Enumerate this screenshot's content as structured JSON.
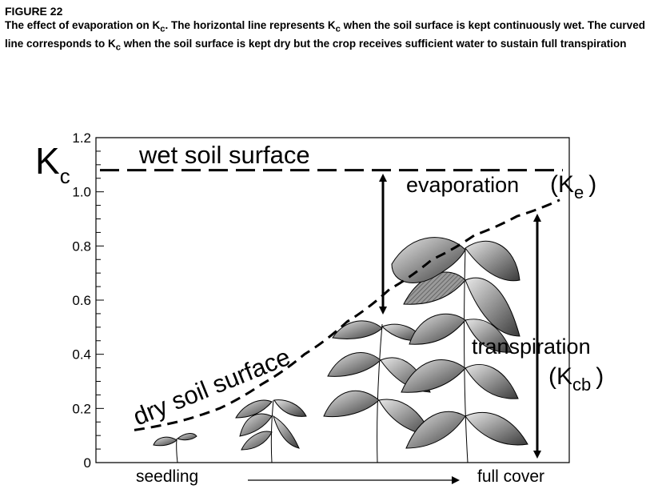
{
  "caption": {
    "figure_label": "FIGURE 22",
    "text_before_sub_1": "The effect of evaporation on K",
    "sub_1": "c",
    "text_between": ". The horizontal line represents K",
    "sub_2": "c",
    "text_mid": " when the soil surface is kept continuously wet. The curved line corresponds to K",
    "sub_3": "c",
    "text_after": " when the soil surface is kept dry but the crop receives sufficient water to sustain full transpiration"
  },
  "colors": {
    "line": "#000000",
    "leaf_dark": "#3a3a3a",
    "leaf_light": "#e8e8e8"
  },
  "chart_data": {
    "type": "line",
    "ylabel_main": "K",
    "ylabel_sub": "c",
    "ylim": [
      0,
      1.2
    ],
    "yticks": [
      0,
      0.2,
      0.4,
      0.6,
      0.8,
      1.0,
      1.2
    ],
    "ytick_labels": [
      "0",
      "0.2",
      "0.4",
      "0.6",
      "0.8",
      "1.0",
      "1.2"
    ],
    "x_start_label": "seedling",
    "x_end_label": "full cover",
    "grid": false,
    "series": [
      {
        "name": "wet soil surface",
        "style": "dashed",
        "x": [
          0,
          1
        ],
        "y": [
          1.08,
          1.08
        ]
      },
      {
        "name": "dry soil surface",
        "style": "dashed",
        "x": [
          0,
          0.1,
          0.2,
          0.3,
          0.4,
          0.5,
          0.6,
          0.7,
          0.8,
          0.9,
          1.0
        ],
        "y": [
          0.12,
          0.15,
          0.2,
          0.29,
          0.4,
          0.52,
          0.64,
          0.75,
          0.84,
          0.91,
          0.97
        ]
      }
    ],
    "annotations": {
      "evaporation_main": "evaporation",
      "evaporation_paren_open": "(K",
      "evaporation_sub": "e",
      "evaporation_paren_close": ")",
      "transpiration_main": "transpiration",
      "transpiration_paren_open": "(K",
      "transpiration_sub": "cb",
      "transpiration_paren_close": ")"
    }
  }
}
